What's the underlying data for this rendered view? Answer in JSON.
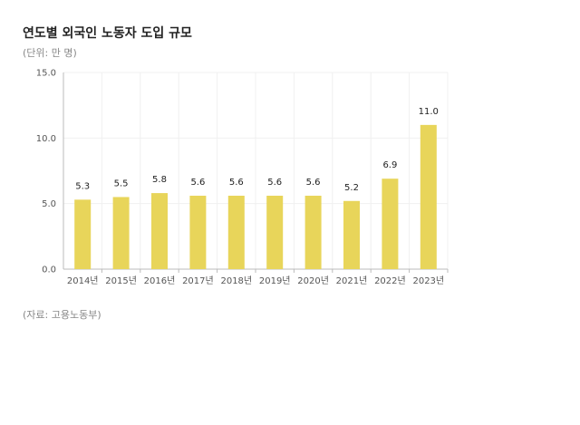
{
  "title": "연도별 외국인 노동자 도입 규모",
  "subtitle": "(단위: 만 명)",
  "source": "(자료: 고용노동부)",
  "colors": {
    "bar": "#e8d55a",
    "axis": "#bbbbbb",
    "grid": "#f0f0f0"
  },
  "chart_data": {
    "type": "bar",
    "title": "연도별 외국인 노동자 도입 규모",
    "categories": [
      "2014년",
      "2015년",
      "2016년",
      "2017년",
      "2018년",
      "2019년",
      "2020년",
      "2021년",
      "2022년",
      "2023년"
    ],
    "values": [
      5.3,
      5.5,
      5.8,
      5.6,
      5.6,
      5.6,
      5.6,
      5.2,
      6.9,
      11.0
    ],
    "value_labels": [
      "5.3",
      "5.5",
      "5.8",
      "5.6",
      "5.6",
      "5.6",
      "5.6",
      "5.2",
      "6.9",
      "11.0"
    ],
    "y_ticks": [
      "0.0",
      "5.0",
      "10.0",
      "15.0"
    ],
    "y_tick_values": [
      0,
      5,
      10,
      15
    ],
    "ylim": [
      0,
      15
    ],
    "grid": true,
    "legend": false
  }
}
